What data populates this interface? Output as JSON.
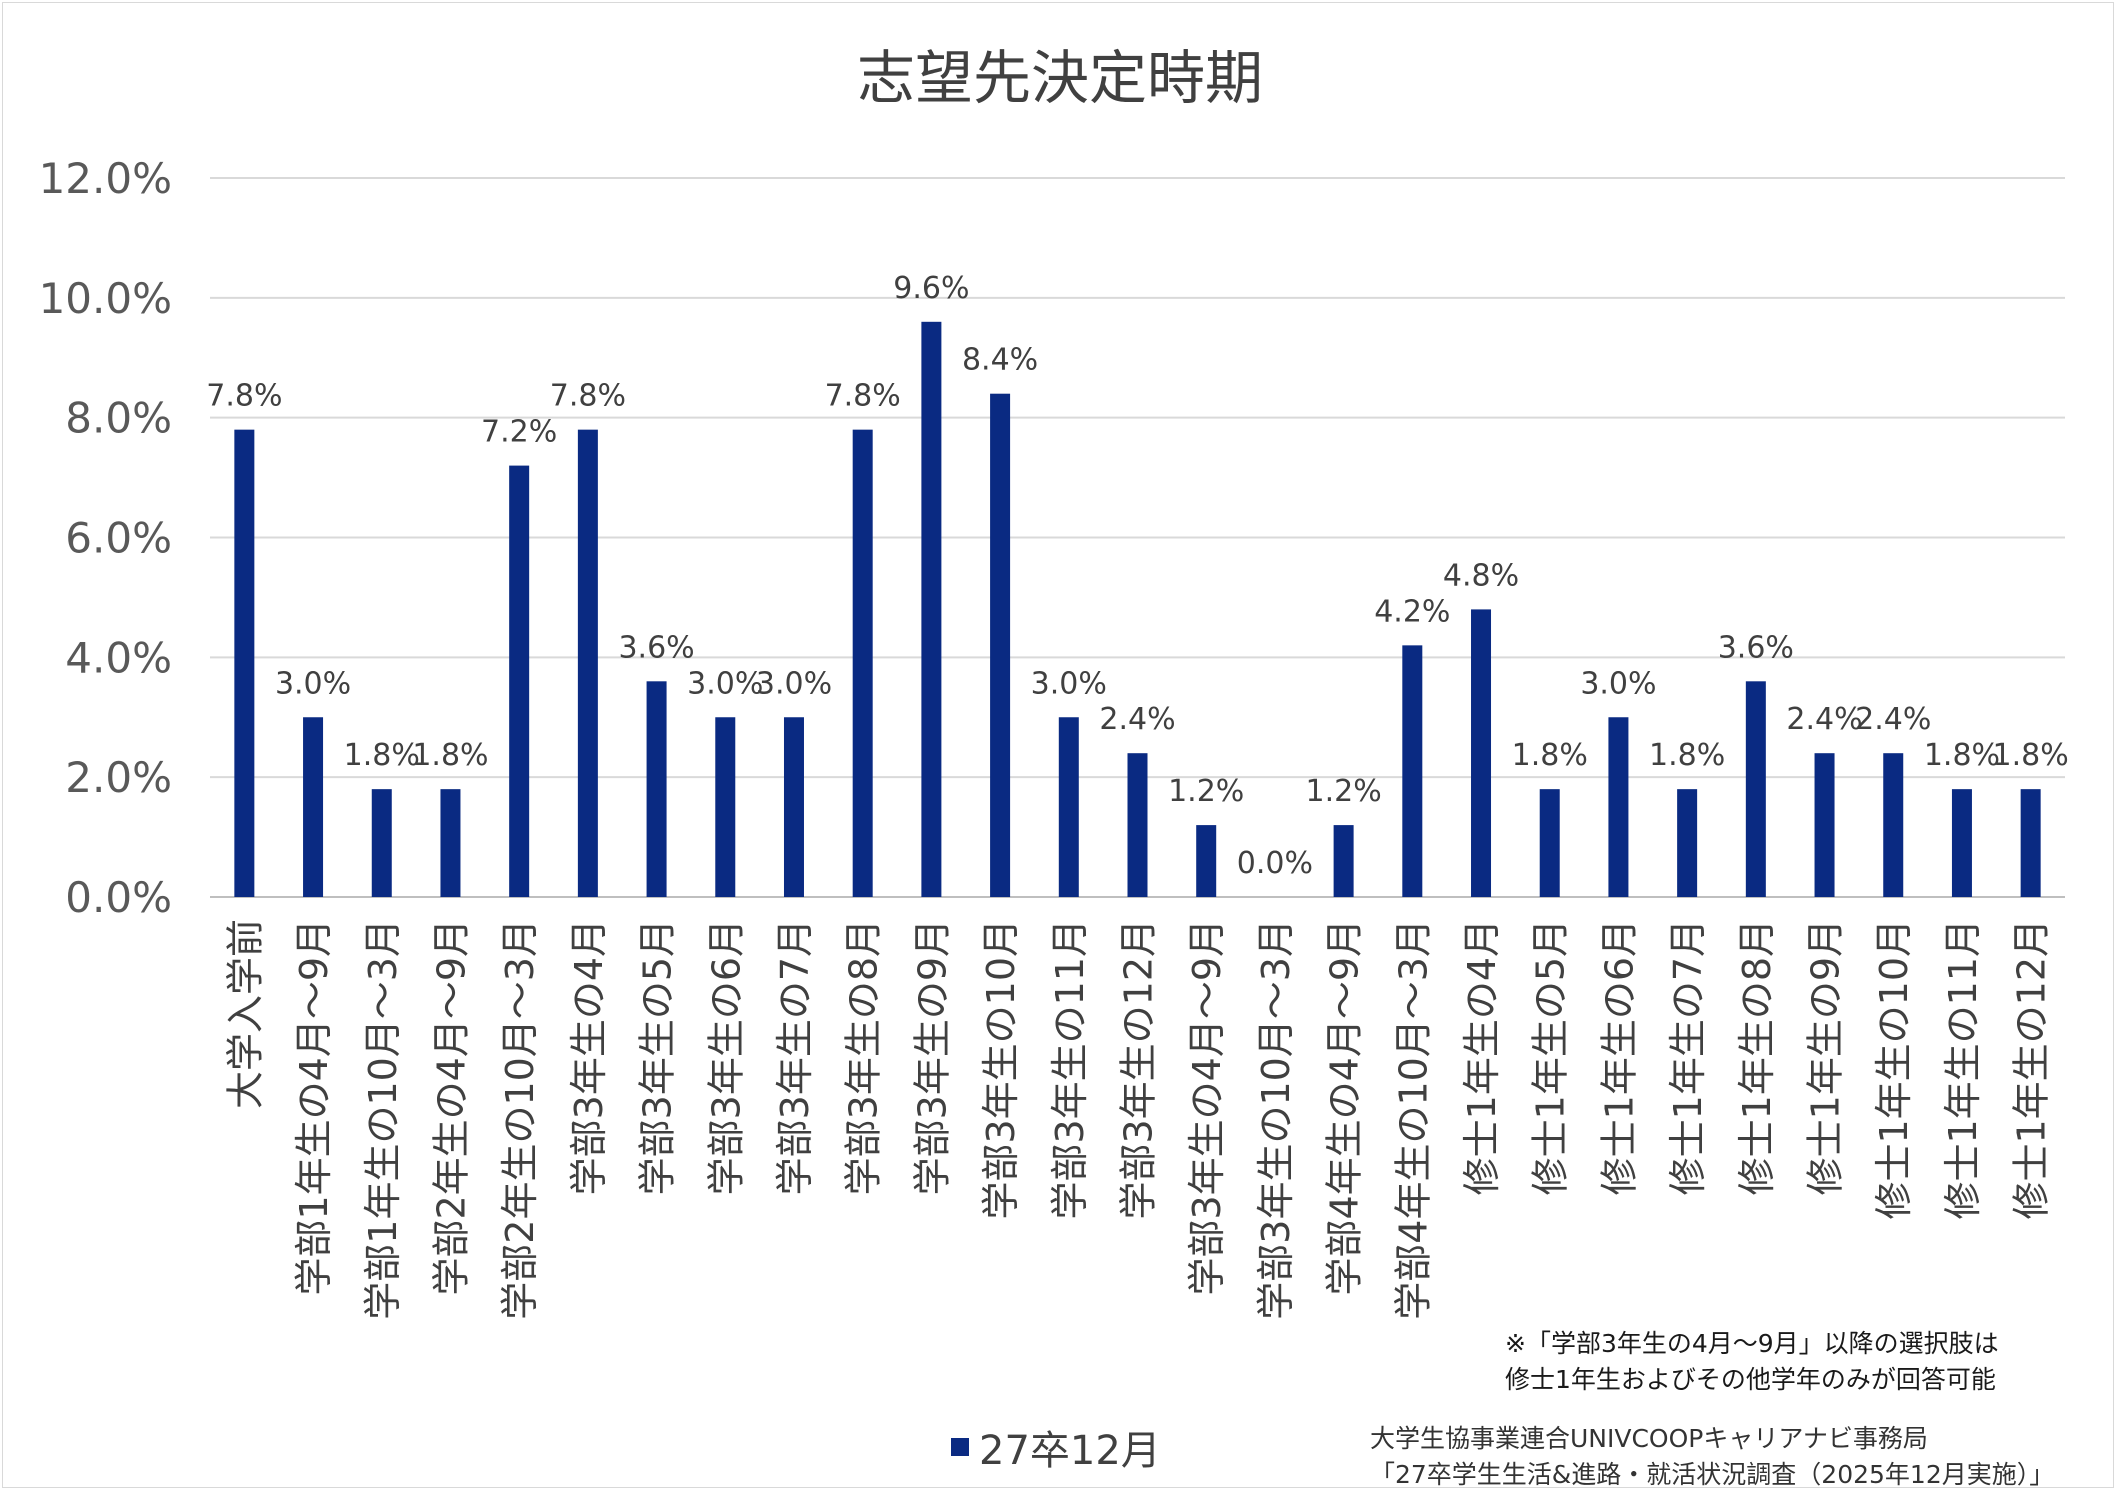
{
  "chart_data": {
    "type": "bar",
    "title": "志望先決定時期",
    "xlabel": "",
    "ylabel": "",
    "ylim": [
      0,
      12
    ],
    "y_ticks": [
      "0.0%",
      "2.0%",
      "4.0%",
      "6.0%",
      "8.0%",
      "10.0%",
      "12.0%"
    ],
    "grid": true,
    "legend_position": "bottom",
    "colors": {
      "bar": "#0a2a82",
      "grid": "#d9d9d9",
      "text": "#404040"
    },
    "categories": [
      "大学入学前",
      "学部1年生の4月～9月",
      "学部1年生の10月～3月",
      "学部2年生の4月～9月",
      "学部2年生の10月～3月",
      "学部3年生の4月",
      "学部3年生の5月",
      "学部3年生の6月",
      "学部3年生の7月",
      "学部3年生の8月",
      "学部3年生の9月",
      "学部3年生の10月",
      "学部3年生の11月",
      "学部3年生の12月",
      "学部3年生の4月～9月",
      "学部3年生の10月～3月",
      "学部4年生の4月～9月",
      "学部4年生の10月～3月",
      "修士1年生の4月",
      "修士1年生の5月",
      "修士1年生の6月",
      "修士1年生の7月",
      "修士1年生の8月",
      "修士1年生の9月",
      "修士1年生の10月",
      "修士1年生の11月",
      "修士1年生の12月"
    ],
    "series": [
      {
        "name": "27卒12月",
        "values": [
          7.8,
          3.0,
          1.8,
          1.8,
          7.2,
          7.8,
          3.6,
          3.0,
          3.0,
          7.8,
          9.6,
          8.4,
          3.0,
          2.4,
          1.2,
          0.0,
          1.2,
          4.2,
          4.8,
          1.8,
          3.0,
          1.8,
          3.6,
          2.4,
          2.4,
          1.8,
          1.8
        ],
        "data_labels": [
          "7.8%",
          "3.0%",
          "1.8%",
          "1.8%",
          "7.2%",
          "7.8%",
          "3.6%",
          "3.0%",
          "3.0%",
          "7.8%",
          "9.6%",
          "8.4%",
          "3.0%",
          "2.4%",
          "1.2%",
          "0.0%",
          "1.2%",
          "4.2%",
          "4.8%",
          "1.8%",
          "3.0%",
          "1.8%",
          "3.6%",
          "2.4%",
          "2.4%",
          "1.8%",
          "1.8%"
        ]
      }
    ]
  },
  "note": {
    "line1": "※「学部3年生の4月～9月」以降の選択肢は",
    "line2": "修士1年生およびその他学年のみが回答可能"
  },
  "source": {
    "line1": "大学生協事業連合UNIVCOOPキャリアナビ事務局",
    "line2": "「27卒学生生活&進路・就活状況調査（2025年12月実施）」"
  }
}
